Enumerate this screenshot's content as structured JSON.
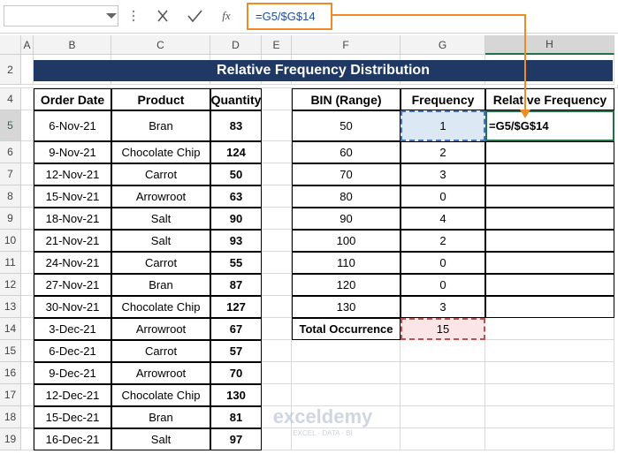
{
  "formula_bar": {
    "function_label": "fx",
    "formula": "=G5/$G$14"
  },
  "column_headers": [
    "A",
    "B",
    "C",
    "D",
    "E",
    "F",
    "G",
    "H"
  ],
  "row_headers": [
    "2",
    "4",
    "5",
    "6",
    "7",
    "8",
    "9",
    "10",
    "11",
    "12",
    "13",
    "14",
    "15",
    "16",
    "17",
    "18",
    "19"
  ],
  "title": "Relative Frequency Distribution",
  "sales_table": {
    "headers": [
      "Order Date",
      "Product",
      "Quantity"
    ],
    "rows": [
      [
        "6-Nov-21",
        "Bran",
        83
      ],
      [
        "9-Nov-21",
        "Chocolate Chip",
        124
      ],
      [
        "12-Nov-21",
        "Carrot",
        50
      ],
      [
        "15-Nov-21",
        "Arrowroot",
        63
      ],
      [
        "18-Nov-21",
        "Salt",
        90
      ],
      [
        "21-Nov-21",
        "Salt",
        93
      ],
      [
        "24-Nov-21",
        "Carrot",
        55
      ],
      [
        "27-Nov-21",
        "Bran",
        87
      ],
      [
        "30-Nov-21",
        "Chocolate Chip",
        127
      ],
      [
        "3-Dec-21",
        "Arrowroot",
        67
      ],
      [
        "6-Dec-21",
        "Carrot",
        57
      ],
      [
        "9-Dec-21",
        "Arrowroot",
        70
      ],
      [
        "12-Dec-21",
        "Chocolate Chip",
        130
      ],
      [
        "15-Dec-21",
        "Bran",
        81
      ],
      [
        "16-Dec-21",
        "Salt",
        97
      ]
    ]
  },
  "frequency_table": {
    "headers": [
      "BIN (Range)",
      "Frequency",
      "Relative Frequency"
    ],
    "rows": [
      [
        50,
        1
      ],
      [
        60,
        2
      ],
      [
        70,
        3
      ],
      [
        80,
        0
      ],
      [
        90,
        4
      ],
      [
        100,
        2
      ],
      [
        110,
        0
      ],
      [
        120,
        0
      ],
      [
        130,
        3
      ]
    ],
    "editing_cell": "=G5/$G$14"
  },
  "total": {
    "label": "Total Occurrence",
    "value": 15
  },
  "watermark": {
    "brand": "exceldemy",
    "tagline": "EXCEL · DATA · BI"
  }
}
